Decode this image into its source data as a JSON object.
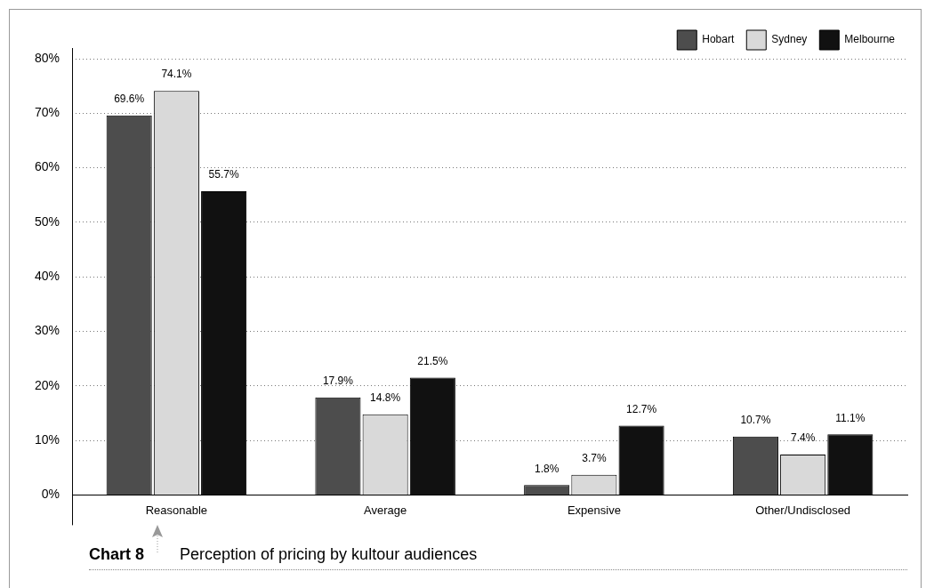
{
  "chart_data": {
    "type": "bar",
    "title": "Perception of pricing by kultour audiences",
    "subtitle": "Chart 8",
    "categories": [
      "Reasonable",
      "Average",
      "Expensive",
      "Other/Undisclosed"
    ],
    "series": [
      {
        "name": "Hobart",
        "color": "#4d4d4d",
        "values": [
          69.6,
          17.9,
          1.8,
          10.7
        ],
        "value_labels": [
          "69.6%",
          "17.9%",
          "1.8%",
          "10.7%"
        ]
      },
      {
        "name": "Sydney",
        "color": "#d9d9d9",
        "values": [
          74.1,
          14.8,
          3.7,
          7.4
        ],
        "value_labels": [
          "74.1%",
          "14.8%",
          "3.7%",
          "7.4%"
        ]
      },
      {
        "name": "Melbourne",
        "color": "#111111",
        "values": [
          55.7,
          21.5,
          12.7,
          11.1
        ],
        "value_labels": [
          "55.7%",
          "21.5%",
          "12.7%",
          "11.1%"
        ]
      }
    ],
    "ylim": [
      0,
      80
    ],
    "yticks": [
      {
        "value": 0,
        "label": "0%"
      },
      {
        "value": 10,
        "label": "10%"
      },
      {
        "value": 20,
        "label": "20%"
      },
      {
        "value": 30,
        "label": "30%"
      },
      {
        "value": 40,
        "label": "40%"
      },
      {
        "value": 50,
        "label": "50%"
      },
      {
        "value": 60,
        "label": "60%"
      },
      {
        "value": 70,
        "label": "70%"
      },
      {
        "value": 80,
        "label": "80%"
      }
    ],
    "grid": "y",
    "legend": "top right"
  }
}
